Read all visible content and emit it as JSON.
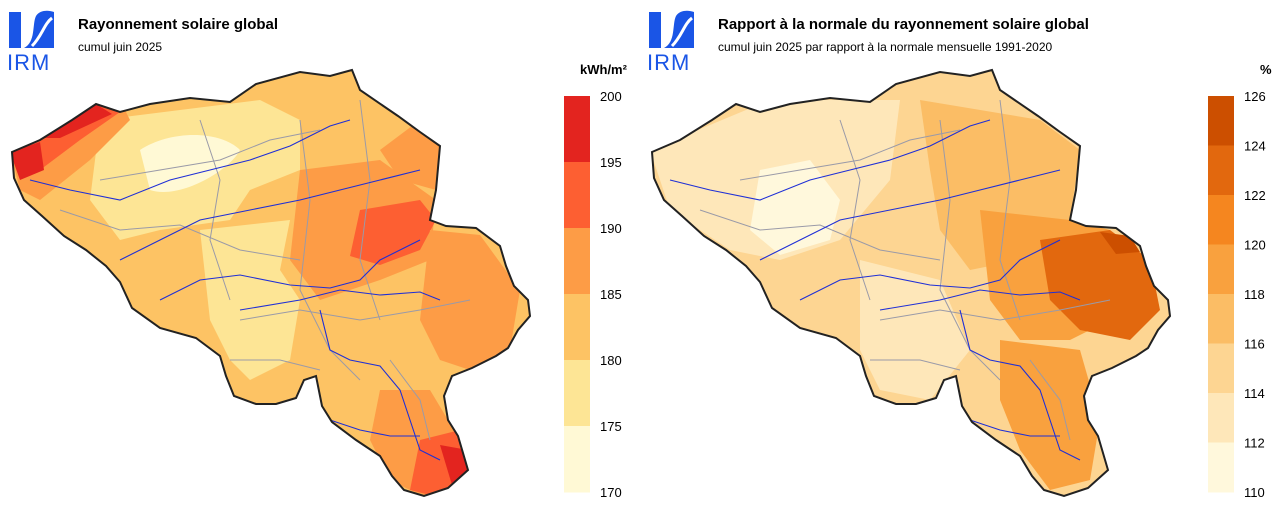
{
  "logo": {
    "text": "IRM",
    "color": "#1a55e6"
  },
  "panels": [
    {
      "title": "Rayonnement solaire global",
      "subtitle": "cumul juin 2025",
      "unit": "kWh/m²",
      "legend": {
        "labels": [
          "200",
          "195",
          "190",
          "185",
          "180",
          "175",
          "170"
        ],
        "colors": [
          "#e3241f",
          "#fd5f32",
          "#fd9c46",
          "#fdc364",
          "#fde595",
          "#fff9d5"
        ]
      }
    },
    {
      "title": "Rapport à la normale du rayonnement solaire global",
      "subtitle": "cumul juin 2025 par rapport à la normale mensuelle 1991-2020",
      "unit": "%",
      "legend": {
        "labels": [
          "126",
          "124",
          "122",
          "120",
          "118",
          "116",
          "114",
          "112",
          "110"
        ],
        "colors": [
          "#cc4f00",
          "#e2680e",
          "#f5861f",
          "#f9a13e",
          "#fbbd65",
          "#fdd592",
          "#fee7b9",
          "#fff8dc"
        ]
      }
    }
  ]
}
